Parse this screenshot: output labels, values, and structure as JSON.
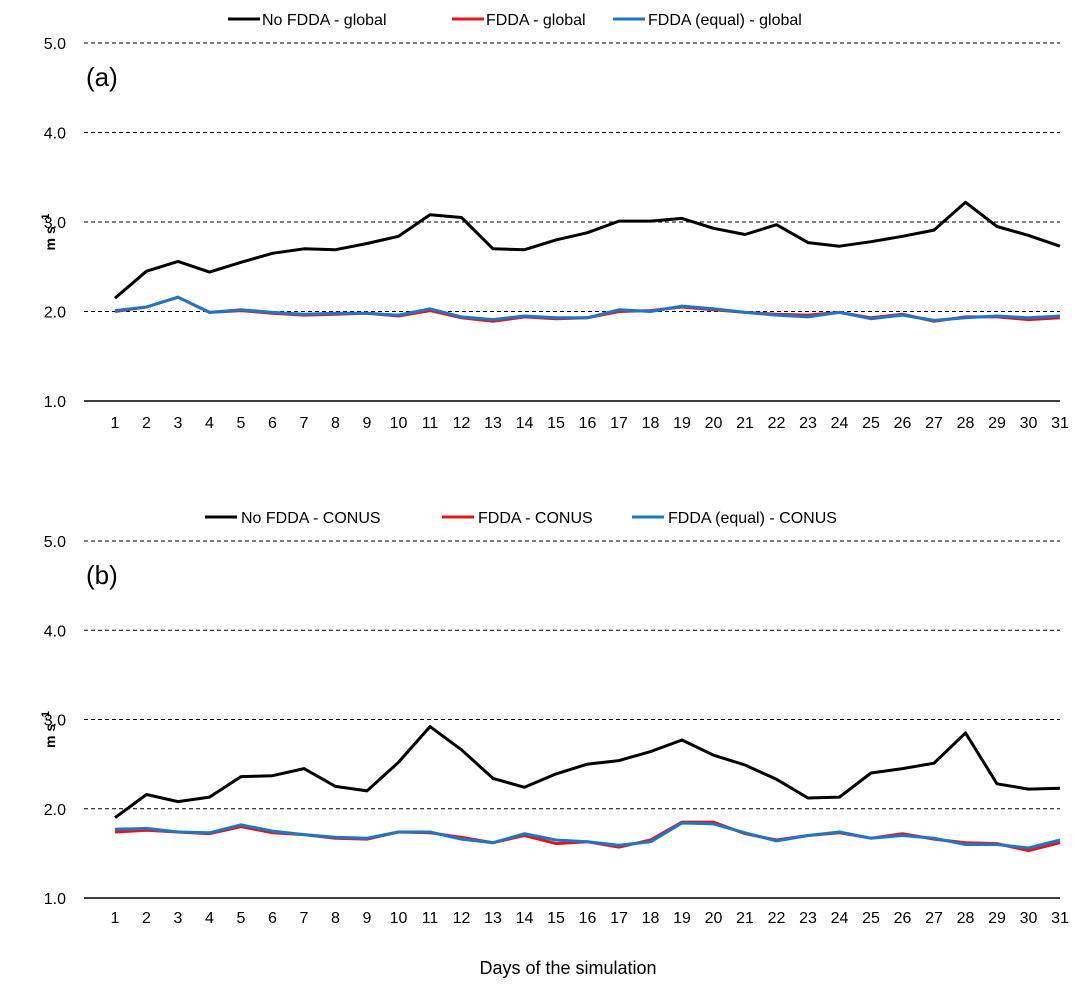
{
  "chart_data": [
    {
      "type": "line",
      "panel_label": "(a)",
      "ylabel": "m s",
      "ylabel_sup": "-1",
      "xlabel": "",
      "ylim": [
        1.0,
        5.0
      ],
      "yticks": [
        "1.0",
        "2.0",
        "3.0",
        "4.0",
        "5.0"
      ],
      "grid": "horizontal dashed",
      "legend_position": "top",
      "x": [
        1,
        2,
        3,
        4,
        5,
        6,
        7,
        8,
        9,
        10,
        11,
        12,
        13,
        14,
        15,
        16,
        17,
        18,
        19,
        20,
        21,
        22,
        23,
        24,
        25,
        26,
        27,
        28,
        29,
        30,
        31
      ],
      "series": [
        {
          "name": "No FDDA - global",
          "color": "#000000",
          "values": [
            2.15,
            2.45,
            2.56,
            2.44,
            2.55,
            2.65,
            2.7,
            2.69,
            2.76,
            2.84,
            3.08,
            3.05,
            2.7,
            2.69,
            2.8,
            2.88,
            3.01,
            3.01,
            3.04,
            2.93,
            2.86,
            2.97,
            2.77,
            2.73,
            2.78,
            2.84,
            2.91,
            3.22,
            2.95,
            2.85,
            2.73
          ]
        },
        {
          "name": "FDDA -  global",
          "color": "#e8141c",
          "values": [
            2.0,
            2.05,
            2.16,
            1.99,
            2.01,
            1.98,
            1.96,
            1.97,
            1.98,
            1.95,
            2.01,
            1.93,
            1.89,
            1.94,
            1.92,
            1.93,
            2.0,
            2.01,
            2.05,
            2.02,
            1.99,
            1.97,
            1.96,
            1.99,
            1.93,
            1.97,
            1.89,
            1.94,
            1.94,
            1.91,
            1.93
          ]
        },
        {
          "name": "FDDA (equal) - global",
          "color": "#1f77c4",
          "values": [
            2.01,
            2.05,
            2.16,
            1.99,
            2.02,
            1.99,
            1.97,
            1.98,
            1.98,
            1.96,
            2.03,
            1.94,
            1.91,
            1.95,
            1.93,
            1.93,
            2.02,
            2.0,
            2.06,
            2.03,
            1.99,
            1.96,
            1.94,
            1.99,
            1.92,
            1.96,
            1.9,
            1.93,
            1.95,
            1.93,
            1.95
          ]
        }
      ]
    },
    {
      "type": "line",
      "panel_label": "(b)",
      "ylabel": "m s",
      "ylabel_sup": "-1",
      "xlabel": "Days of the simulation",
      "ylim": [
        1.0,
        5.0
      ],
      "yticks": [
        "1.0",
        "2.0",
        "3.0",
        "4.0",
        "5.0"
      ],
      "grid": "horizontal dashed",
      "legend_position": "top",
      "x": [
        1,
        2,
        3,
        4,
        5,
        6,
        7,
        8,
        9,
        10,
        11,
        12,
        13,
        14,
        15,
        16,
        17,
        18,
        19,
        20,
        21,
        22,
        23,
        24,
        25,
        26,
        27,
        28,
        29,
        30,
        31
      ],
      "series": [
        {
          "name": "No FDDA - CONUS",
          "color": "#000000",
          "values": [
            1.9,
            2.16,
            2.08,
            2.13,
            2.36,
            2.37,
            2.45,
            2.25,
            2.2,
            2.52,
            2.92,
            2.66,
            2.34,
            2.24,
            2.39,
            2.5,
            2.54,
            2.64,
            2.77,
            2.6,
            2.49,
            2.33,
            2.12,
            2.13,
            2.4,
            2.45,
            2.51,
            2.85,
            2.28,
            2.22,
            2.23
          ]
        },
        {
          "name": "FDDA - CONUS",
          "color": "#e8141c",
          "values": [
            1.74,
            1.76,
            1.74,
            1.72,
            1.8,
            1.73,
            1.71,
            1.67,
            1.66,
            1.74,
            1.73,
            1.68,
            1.62,
            1.7,
            1.61,
            1.63,
            1.57,
            1.65,
            1.85,
            1.85,
            1.72,
            1.65,
            1.7,
            1.73,
            1.67,
            1.72,
            1.66,
            1.62,
            1.61,
            1.53,
            1.62
          ]
        },
        {
          "name": "FDDA (equal) - CONUS",
          "color": "#1f77c4",
          "values": [
            1.77,
            1.78,
            1.74,
            1.73,
            1.82,
            1.75,
            1.71,
            1.68,
            1.67,
            1.74,
            1.74,
            1.66,
            1.62,
            1.72,
            1.65,
            1.63,
            1.59,
            1.63,
            1.84,
            1.83,
            1.73,
            1.64,
            1.7,
            1.74,
            1.67,
            1.7,
            1.67,
            1.6,
            1.6,
            1.56,
            1.65
          ]
        }
      ]
    }
  ]
}
